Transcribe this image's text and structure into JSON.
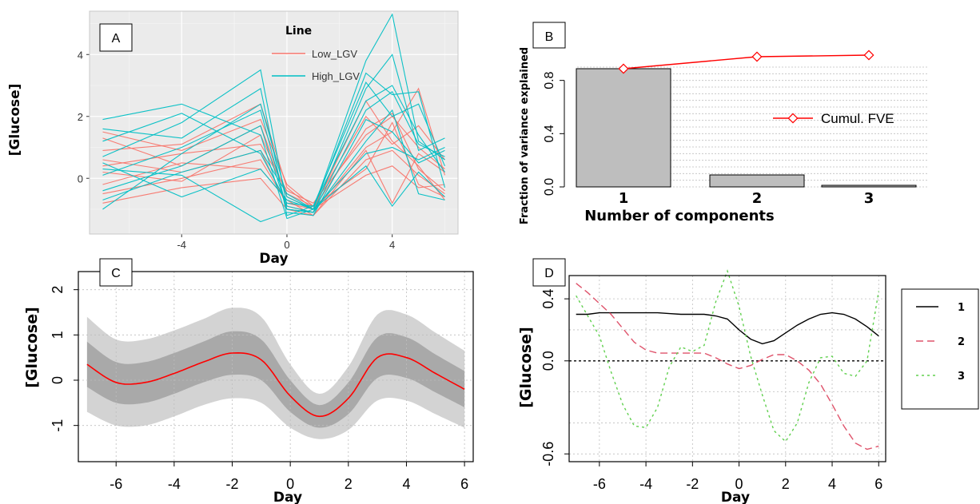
{
  "chart_data": [
    {
      "panel": "A",
      "type": "line",
      "xlabel": "Day",
      "ylabel": "[Glucose]",
      "xlim": [
        -7.5,
        6.5
      ],
      "ylim": [
        -1.8,
        5.4
      ],
      "xticks": [
        -4,
        0,
        4
      ],
      "yticks": [
        0,
        2,
        4
      ],
      "legend": {
        "title": "Line",
        "placement": "top-center",
        "entries": [
          "Low_LGV",
          "High_LGV"
        ]
      },
      "colors": {
        "Low_LGV": "#f8766d",
        "High_LGV": "#00bfc4"
      },
      "days": [
        -7,
        -4,
        -1,
        0,
        1,
        3,
        4,
        5,
        6
      ],
      "series": [
        {
          "name": "Low_LGV",
          "values": [
            1.3,
            0.4,
            1.7,
            -0.6,
            -1.0,
            1.6,
            2.1,
            0.3,
            -0.4
          ]
        },
        {
          "name": "Low_LGV",
          "values": [
            0.6,
            0.2,
            0.9,
            -0.9,
            -1.1,
            1.0,
            1.5,
            2.9,
            0.1
          ]
        },
        {
          "name": "Low_LGV",
          "values": [
            0.2,
            -0.1,
            1.4,
            -0.5,
            -0.9,
            0.3,
            1.8,
            -0.2,
            -0.6
          ]
        },
        {
          "name": "Low_LGV",
          "values": [
            -0.2,
            0.5,
            0.3,
            -0.7,
            -1.2,
            0.9,
            -0.8,
            0.8,
            0.2
          ]
        },
        {
          "name": "Low_LGV",
          "values": [
            0.9,
            1.1,
            2.4,
            -0.3,
            -1.0,
            2.5,
            1.2,
            0.4,
            -0.7
          ]
        },
        {
          "name": "Low_LGV",
          "values": [
            -0.5,
            0.0,
            0.6,
            -0.8,
            -1.0,
            0.1,
            0.4,
            -0.3,
            -0.2
          ]
        },
        {
          "name": "Low_LGV",
          "values": [
            0.4,
            0.8,
            1.1,
            -0.4,
            -0.8,
            1.4,
            2.0,
            1.0,
            0.3
          ]
        },
        {
          "name": "Low_LGV",
          "values": [
            -0.8,
            -0.3,
            0.0,
            -1.0,
            -1.2,
            0.6,
            0.9,
            0.1,
            -0.5
          ]
        },
        {
          "name": "Low_LGV",
          "values": [
            1.5,
            0.9,
            1.9,
            -0.2,
            -0.9,
            2.0,
            1.1,
            1.7,
            0.6
          ]
        },
        {
          "name": "High_LGV",
          "values": [
            1.9,
            2.4,
            1.4,
            -1.3,
            -1.0,
            3.8,
            5.3,
            1.2,
            0.6
          ]
        },
        {
          "name": "High_LGV",
          "values": [
            0.7,
            1.8,
            3.5,
            -0.9,
            -1.1,
            2.9,
            4.0,
            0.9,
            1.3
          ]
        },
        {
          "name": "High_LGV",
          "values": [
            -1.0,
            0.8,
            2.4,
            -0.6,
            -1.0,
            3.4,
            2.7,
            2.8,
            -0.3
          ]
        },
        {
          "name": "High_LGV",
          "values": [
            0.3,
            0.1,
            -1.4,
            -1.1,
            -1.2,
            1.9,
            1.5,
            0.5,
            0.9
          ]
        },
        {
          "name": "High_LGV",
          "values": [
            1.2,
            2.1,
            0.8,
            -0.8,
            -0.9,
            2.5,
            3.0,
            1.4,
            0.2
          ]
        },
        {
          "name": "High_LGV",
          "values": [
            -0.4,
            0.4,
            1.7,
            -1.0,
            -1.1,
            1.2,
            2.2,
            -0.5,
            -0.7
          ]
        },
        {
          "name": "High_LGV",
          "values": [
            0.5,
            -0.6,
            0.3,
            -0.7,
            -1.0,
            0.8,
            1.0,
            0.6,
            1.0
          ]
        },
        {
          "name": "High_LGV",
          "values": [
            1.6,
            1.3,
            2.9,
            -1.2,
            -0.9,
            3.1,
            2.0,
            2.4,
            0.4
          ]
        },
        {
          "name": "High_LGV",
          "values": [
            -0.7,
            0.2,
            0.9,
            -0.5,
            -1.0,
            0.4,
            -0.9,
            0.2,
            -0.6
          ]
        },
        {
          "name": "High_LGV",
          "values": [
            0.1,
            1.0,
            2.2,
            -1.0,
            -1.1,
            2.2,
            2.8,
            1.1,
            0.7
          ]
        }
      ]
    },
    {
      "panel": "B",
      "type": "bar",
      "xlabel": "Number of components",
      "ylabel": "Fraction of variance explained",
      "categories": [
        "1",
        "2",
        "3"
      ],
      "values": [
        0.888,
        0.09,
        0.012
      ],
      "ylim": [
        0,
        0.95
      ],
      "yticks": [
        "0.0",
        "0.4",
        "0.8"
      ],
      "bar_color": "#bebebe",
      "line": {
        "name": "Cumul. FVE",
        "values": [
          0.888,
          0.978,
          0.99
        ],
        "color": "#ff0000"
      },
      "legend_placement": "right"
    },
    {
      "panel": "C",
      "type": "area",
      "xlabel": "Day",
      "ylabel": "[Glucose]",
      "xlim": [
        -7.3,
        6.3
      ],
      "ylim": [
        -1.8,
        2.4
      ],
      "xticks": [
        -6,
        -4,
        -2,
        0,
        2,
        4,
        6
      ],
      "yticks": [
        -1,
        0,
        1,
        2
      ],
      "x": [
        -7,
        -6,
        -5,
        -4,
        -3,
        -2,
        -1,
        0,
        1,
        2,
        3,
        4,
        5,
        6
      ],
      "mean": [
        0.35,
        -0.05,
        -0.05,
        0.15,
        0.4,
        0.6,
        0.45,
        -0.35,
        -0.8,
        -0.4,
        0.5,
        0.5,
        0.15,
        -0.2
      ],
      "inner_band": [
        0.5,
        0.45,
        0.45,
        0.45,
        0.45,
        0.48,
        0.45,
        0.35,
        0.25,
        0.35,
        0.45,
        0.45,
        0.42,
        0.4
      ],
      "outer_band": [
        1.05,
        0.95,
        0.95,
        0.95,
        0.95,
        1.0,
        0.95,
        0.7,
        0.5,
        0.7,
        0.95,
        0.95,
        0.9,
        0.85
      ],
      "colors": {
        "mean": "#ff0000",
        "inner": "#a9a9a9",
        "outer": "#d3d3d3"
      }
    },
    {
      "panel": "D",
      "type": "line",
      "xlabel": "Day",
      "ylabel": "[Glucose]",
      "xlim": [
        -7.3,
        6.3
      ],
      "ylim": [
        -0.65,
        0.55
      ],
      "xticks": [
        -6,
        -4,
        -2,
        0,
        2,
        4,
        6
      ],
      "yticks": [
        "-0.6",
        "0.0",
        "0.4"
      ],
      "x": [
        -7,
        -6.5,
        -6,
        -5.5,
        -5,
        -4.5,
        -4,
        -3.5,
        -3,
        -2.5,
        -2,
        -1.5,
        -1,
        -0.5,
        0,
        0.5,
        1,
        1.5,
        2,
        2.5,
        3,
        3.5,
        4,
        4.5,
        5,
        5.5,
        6
      ],
      "series": [
        {
          "name": "1",
          "color": "#000000",
          "dash": "",
          "values": [
            0.3,
            0.3,
            0.31,
            0.31,
            0.31,
            0.31,
            0.31,
            0.31,
            0.305,
            0.3,
            0.3,
            0.3,
            0.29,
            0.27,
            0.2,
            0.14,
            0.11,
            0.13,
            0.18,
            0.23,
            0.27,
            0.3,
            0.31,
            0.3,
            0.27,
            0.22,
            0.16
          ]
        },
        {
          "name": "2",
          "color": "#df536b",
          "dash": "9,5",
          "values": [
            0.5,
            0.44,
            0.37,
            0.3,
            0.21,
            0.12,
            0.07,
            0.05,
            0.05,
            0.05,
            0.05,
            0.05,
            0.02,
            -0.02,
            -0.05,
            -0.03,
            0.01,
            0.04,
            0.04,
            0.0,
            -0.06,
            -0.15,
            -0.28,
            -0.42,
            -0.53,
            -0.57,
            -0.55
          ]
        },
        {
          "name": "3",
          "color": "#61d04f",
          "dash": "3,4",
          "values": [
            0.42,
            0.29,
            0.16,
            -0.07,
            -0.28,
            -0.42,
            -0.43,
            -0.3,
            -0.04,
            0.09,
            0.06,
            0.1,
            0.38,
            0.58,
            0.35,
            0.03,
            -0.22,
            -0.45,
            -0.52,
            -0.4,
            -0.14,
            0.02,
            0.03,
            -0.08,
            -0.1,
            0.0,
            0.45
          ]
        }
      ],
      "legend_entries": [
        "1",
        "2",
        "3"
      ],
      "legend_placement": "right"
    }
  ]
}
